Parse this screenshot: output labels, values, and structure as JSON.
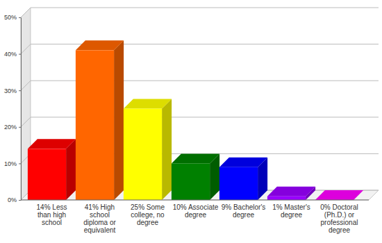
{
  "chart_data": {
    "type": "bar",
    "categories": [
      "14% Less than high school",
      "41% High school diploma or equivalent",
      "25% Some college, no degree",
      "10% Associate degree",
      "9% Bachelor's degree",
      "1% Master's degree",
      "0% Doctoral (Ph.D.) or professional degree"
    ],
    "values": [
      14,
      41,
      25,
      10,
      9,
      1,
      0
    ],
    "colors": [
      "#ff0000",
      "#ff6600",
      "#ffff00",
      "#008000",
      "#0000ff",
      "#9900ff",
      "#ff00ff"
    ],
    "ylim": [
      0,
      50
    ],
    "yticks": [
      {
        "value": 0,
        "label": "0%"
      },
      {
        "value": 10,
        "label": "10%"
      },
      {
        "value": 20,
        "label": "20%"
      },
      {
        "value": 30,
        "label": "30%"
      },
      {
        "value": 40,
        "label": "40%"
      },
      {
        "value": 50,
        "label": "50%"
      }
    ],
    "grid": true
  }
}
